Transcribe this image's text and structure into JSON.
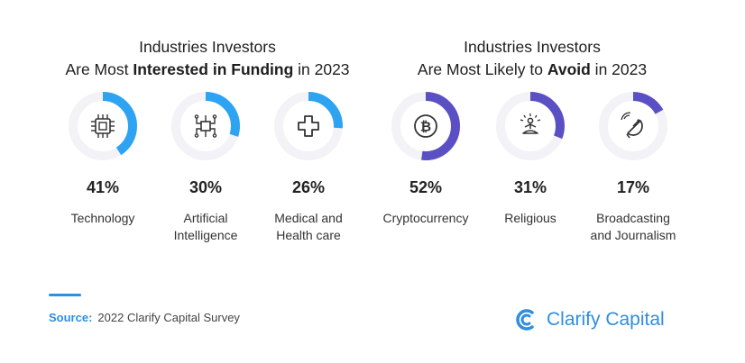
{
  "panels": {
    "left": {
      "title_pre": "Industries Investors",
      "title_line2_pre": "Are Most ",
      "title_bold": "Interested in Funding",
      "title_post": " in 2023"
    },
    "right": {
      "title_pre": "Industries Investors",
      "title_line2_pre": "Are Most Likely to ",
      "title_bold": "Avoid",
      "title_post": " in 2023"
    }
  },
  "chart_data": [
    {
      "type": "pie",
      "title": "Industries Investors Are Most Interested in Funding in 2023",
      "color": "#2ea3f2",
      "categories": [
        "Technology",
        "Artificial Intelligence",
        "Medical and Health care"
      ],
      "values": [
        41,
        30,
        26
      ],
      "value_labels": [
        "41%",
        "30%",
        "26%"
      ],
      "label_lines": [
        [
          "Technology"
        ],
        [
          "Artificial",
          "Intelligence"
        ],
        [
          "Medical and",
          "Health care"
        ]
      ],
      "icons": [
        "chip-icon",
        "circuit-icon",
        "medical-cross-icon"
      ]
    },
    {
      "type": "pie",
      "title": "Industries Investors Are Most Likely to Avoid in 2023",
      "color": "#5b4fc4",
      "categories": [
        "Cryptocurrency",
        "Religious",
        "Broadcasting and Journalism"
      ],
      "values": [
        52,
        31,
        17
      ],
      "value_labels": [
        "52%",
        "31%",
        "17%"
      ],
      "label_lines": [
        [
          "Cryptocurrency"
        ],
        [
          "Religious"
        ],
        [
          "Broadcasting",
          "and Journalism"
        ]
      ],
      "icons": [
        "bitcoin-icon",
        "meditation-icon",
        "satellite-dish-icon"
      ]
    }
  ],
  "source": {
    "label": "Source:",
    "text": "2022 Clarify Capital Survey"
  },
  "logo": {
    "text": "Clarify Capital",
    "color": "#2f8ee0"
  }
}
